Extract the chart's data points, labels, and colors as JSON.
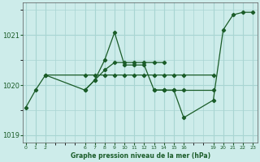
{
  "title": "Graphe pression niveau de la mer (hPa)",
  "bg_color": "#cdecea",
  "grid_color": "#a8d5d2",
  "line_color": "#1a5c28",
  "lines": [
    [
      [
        0,
        1019.55
      ],
      [
        1,
        1019.9
      ],
      [
        2,
        1020.2
      ],
      [
        6,
        1020.2
      ],
      [
        7,
        1020.2
      ],
      [
        8,
        1020.2
      ],
      [
        9,
        1020.2
      ],
      [
        10,
        1020.2
      ],
      [
        11,
        1020.2
      ],
      [
        12,
        1020.2
      ],
      [
        13,
        1020.2
      ],
      [
        14,
        1020.2
      ],
      [
        15,
        1020.2
      ],
      [
        16,
        1020.2
      ],
      [
        19,
        1020.2
      ]
    ],
    [
      [
        2,
        1020.2
      ],
      [
        6,
        1019.9
      ],
      [
        7,
        1020.1
      ],
      [
        8,
        1020.5
      ],
      [
        9,
        1021.05
      ],
      [
        10,
        1020.4
      ],
      [
        11,
        1020.4
      ],
      [
        12,
        1020.4
      ],
      [
        13,
        1019.9
      ],
      [
        14,
        1019.9
      ]
    ],
    [
      [
        6,
        1019.9
      ],
      [
        7,
        1020.1
      ],
      [
        8,
        1020.3
      ],
      [
        9,
        1020.45
      ],
      [
        10,
        1020.45
      ],
      [
        11,
        1020.45
      ],
      [
        12,
        1020.45
      ],
      [
        13,
        1020.45
      ],
      [
        14,
        1020.45
      ]
    ],
    [
      [
        13,
        1019.9
      ],
      [
        14,
        1019.9
      ],
      [
        15,
        1019.9
      ],
      [
        16,
        1019.35
      ],
      [
        19,
        1019.7
      ],
      [
        20,
        1021.1
      ],
      [
        21,
        1021.4
      ],
      [
        22,
        1021.45
      ],
      [
        23,
        1021.45
      ]
    ],
    [
      [
        14,
        1019.9
      ],
      [
        15,
        1019.9
      ],
      [
        16,
        1019.9
      ],
      [
        19,
        1019.9
      ]
    ]
  ],
  "xlim": [
    -0.3,
    23.5
  ],
  "ylim": [
    1018.85,
    1021.65
  ],
  "yticks": [
    1019,
    1020,
    1021
  ],
  "xtick_positions": [
    0,
    1,
    2,
    6,
    7,
    8,
    9,
    10,
    11,
    12,
    13,
    14,
    15,
    16,
    19,
    20,
    21,
    22,
    23
  ],
  "xtick_labels": [
    "0",
    "1",
    "2",
    "6",
    "7",
    "8",
    "9",
    "10",
    "11",
    "12",
    "13",
    "14",
    "15",
    "16",
    "19",
    "20",
    "21",
    "22",
    "23"
  ]
}
